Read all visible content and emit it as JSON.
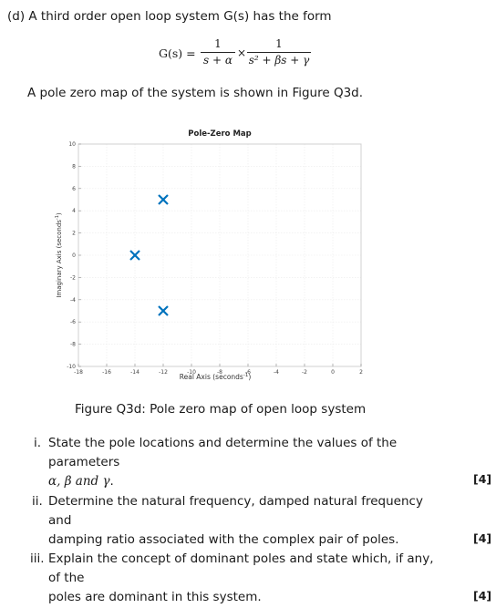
{
  "question": {
    "intro": "(d) A third order open loop system G(s) has the form",
    "equation": {
      "lhs": "G(s) =",
      "frac1_num": "1",
      "frac1_den": "s + α",
      "times": "×",
      "frac2_num": "1",
      "frac2_den": "s² + βs + γ"
    },
    "map_intro": "A pole zero map of the system is shown in Figure Q3d."
  },
  "chart_data": {
    "type": "scatter",
    "title": "Pole-Zero Map",
    "xlabel": "Real Axis (seconds",
    "ylabel": "Imaginary Axis (seconds",
    "unit_exponent": "-1",
    "xlim": [
      -18,
      2
    ],
    "ylim": [
      -10,
      10
    ],
    "xticks": [
      -18,
      -16,
      -14,
      -12,
      -10,
      -8,
      -6,
      -4,
      -2,
      0,
      2
    ],
    "yticks": [
      10,
      8,
      6,
      4,
      2,
      0,
      -2,
      -4,
      -6,
      -8,
      -10
    ],
    "grid": true,
    "marker": "x",
    "marker_color": "#0072bd",
    "poles": [
      {
        "x": -12,
        "y": 5
      },
      {
        "x": -14,
        "y": 0
      },
      {
        "x": -12,
        "y": -5
      }
    ]
  },
  "caption": "Figure Q3d: Pole zero map of open loop system",
  "parts": [
    {
      "label": "i.",
      "text1": "State the pole locations and determine the values of the parameters",
      "text2_pre": "α, β and γ",
      "text2_post": ".",
      "marks": "[4]"
    },
    {
      "label": "ii.",
      "text1": "Determine the natural frequency, damped natural frequency and",
      "text2": "damping ratio associated with the complex pair of poles.",
      "marks": "[4]"
    },
    {
      "label": "iii.",
      "text1": "Explain the concept of dominant poles and state which, if any, of the",
      "text2": "poles are dominant in this system.",
      "marks": "[4]"
    }
  ]
}
